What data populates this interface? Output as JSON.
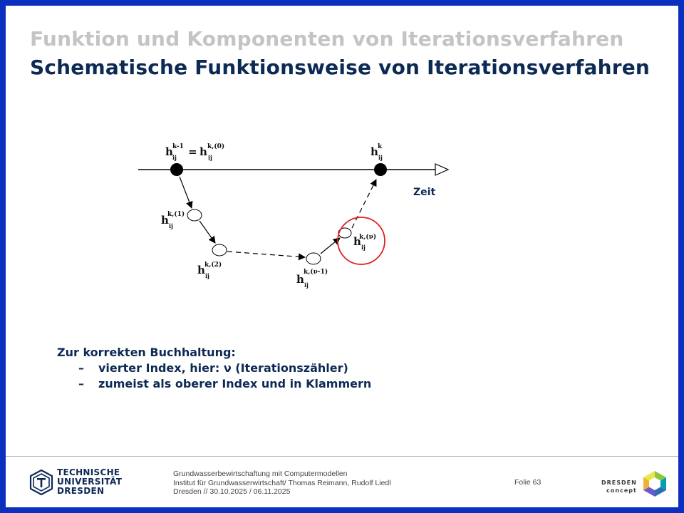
{
  "slide": {
    "title_gray": "Funktion und Komponenten von Iterationsverfahren",
    "title_main": "Schematische Funktionsweise von Iterationsverfahren"
  },
  "diagram": {
    "time_label": "Zeit",
    "h": "h",
    "ij": "ij",
    "eq": "=",
    "sup_km1": "k-1",
    "sup_k0": "k,(0)",
    "sup_k": "k",
    "sup_k1": "k,(1)",
    "sup_k2": "k,(2)",
    "sup_knu1": "k,(ν-1)",
    "sup_knu": "k,(ν)",
    "highlight_color": "#e02020"
  },
  "notes": {
    "heading": "Zur korrekten Buchhaltung:",
    "items": [
      "vierter Index, hier: ν (Iterationszähler)",
      "zumeist als oberer Index und in Klammern"
    ],
    "bullet": "–"
  },
  "footer": {
    "university_lines": [
      "TECHNISCHE",
      "UNIVERSITÄT",
      "DRESDEN"
    ],
    "meta_lines": [
      "Grundwasserbewirtschaftung mit Computermodellen",
      "Institut für Grundwasserwirtschaft/ Thomas Reimann, Rudolf Liedl",
      "Dresden // 30.10.2025 / 06.11.2025"
    ],
    "folie_label": "Folie 63",
    "dresden_concept": [
      "DRESDEN",
      "concept"
    ]
  },
  "colors": {
    "frame": "#0b2fbf",
    "title_gray": "#c4c4c4",
    "navy": "#0d2a55"
  }
}
